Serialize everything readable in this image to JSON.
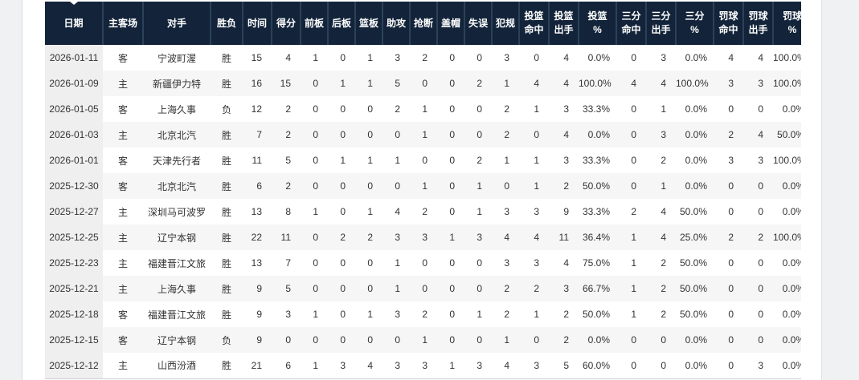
{
  "colors": {
    "header_bg": "#13243a",
    "header_divider": "#2b4158",
    "header_text": "#ffffff",
    "body_text": "#333333",
    "date_col_bg": "#efeff0",
    "stripe_bg": "#f6f6f7",
    "page_edge_bg": "#f0f1f2"
  },
  "table": {
    "columns": [
      {
        "id": "date",
        "label": "日期"
      },
      {
        "id": "venue",
        "label": "主客场"
      },
      {
        "id": "opponent",
        "label": "对手"
      },
      {
        "id": "result",
        "label": "胜负"
      },
      {
        "id": "minutes",
        "label": "时间"
      },
      {
        "id": "points",
        "label": "得分"
      },
      {
        "id": "orb",
        "label": "前板"
      },
      {
        "id": "drb",
        "label": "后板"
      },
      {
        "id": "reb",
        "label": "篮板"
      },
      {
        "id": "ast",
        "label": "助攻"
      },
      {
        "id": "stl",
        "label": "抢断"
      },
      {
        "id": "blk",
        "label": "盖帽"
      },
      {
        "id": "tov",
        "label": "失误"
      },
      {
        "id": "pf",
        "label": "犯规"
      },
      {
        "id": "fgm",
        "label": "投篮命中",
        "label_lines": [
          "投篮",
          "命中"
        ]
      },
      {
        "id": "fga",
        "label": "投篮出手",
        "label_lines": [
          "投篮",
          "出手"
        ]
      },
      {
        "id": "fgp",
        "label": "投篮%",
        "label_lines": [
          "投篮",
          "%"
        ]
      },
      {
        "id": "tpm",
        "label": "三分命中",
        "label_lines": [
          "三分",
          "命中"
        ]
      },
      {
        "id": "tpa",
        "label": "三分出手",
        "label_lines": [
          "三分",
          "出手"
        ]
      },
      {
        "id": "tpp",
        "label": "三分%",
        "label_lines": [
          "三分",
          "%"
        ]
      },
      {
        "id": "ftm",
        "label": "罚球命中",
        "label_lines": [
          "罚球",
          "命中"
        ]
      },
      {
        "id": "fta",
        "label": "罚球出手",
        "label_lines": [
          "罚球",
          "出手"
        ]
      },
      {
        "id": "ftp",
        "label": "罚球%",
        "label_lines": [
          "罚球",
          "%"
        ]
      }
    ],
    "rows": [
      [
        "2026-01-11",
        "客",
        "宁波町渥",
        "胜",
        "15",
        "4",
        "1",
        "0",
        "1",
        "3",
        "2",
        "0",
        "0",
        "3",
        "0",
        "4",
        "0.0%",
        "0",
        "3",
        "0.0%",
        "4",
        "4",
        "100.0%"
      ],
      [
        "2026-01-09",
        "主",
        "新疆伊力特",
        "胜",
        "16",
        "15",
        "0",
        "1",
        "1",
        "5",
        "0",
        "0",
        "2",
        "1",
        "4",
        "4",
        "100.0%",
        "4",
        "4",
        "100.0%",
        "3",
        "3",
        "100.0%"
      ],
      [
        "2026-01-05",
        "客",
        "上海久事",
        "负",
        "12",
        "2",
        "0",
        "0",
        "0",
        "2",
        "1",
        "0",
        "0",
        "2",
        "1",
        "3",
        "33.3%",
        "0",
        "1",
        "0.0%",
        "0",
        "0",
        "0.0%"
      ],
      [
        "2026-01-03",
        "主",
        "北京北汽",
        "胜",
        "7",
        "2",
        "0",
        "0",
        "0",
        "0",
        "1",
        "0",
        "0",
        "2",
        "0",
        "4",
        "0.0%",
        "0",
        "3",
        "0.0%",
        "2",
        "4",
        "50.0%"
      ],
      [
        "2026-01-01",
        "客",
        "天津先行者",
        "胜",
        "11",
        "5",
        "0",
        "1",
        "1",
        "1",
        "0",
        "0",
        "2",
        "1",
        "1",
        "3",
        "33.3%",
        "0",
        "2",
        "0.0%",
        "3",
        "3",
        "100.0%"
      ],
      [
        "2025-12-30",
        "客",
        "北京北汽",
        "胜",
        "6",
        "2",
        "0",
        "0",
        "0",
        "0",
        "1",
        "0",
        "1",
        "0",
        "1",
        "2",
        "50.0%",
        "0",
        "1",
        "0.0%",
        "0",
        "0",
        "0.0%"
      ],
      [
        "2025-12-27",
        "主",
        "深圳马可波罗",
        "胜",
        "13",
        "8",
        "1",
        "0",
        "1",
        "4",
        "2",
        "0",
        "1",
        "3",
        "3",
        "9",
        "33.3%",
        "2",
        "4",
        "50.0%",
        "0",
        "0",
        "0.0%"
      ],
      [
        "2025-12-25",
        "主",
        "辽宁本钢",
        "胜",
        "22",
        "11",
        "0",
        "2",
        "2",
        "3",
        "3",
        "1",
        "3",
        "4",
        "4",
        "11",
        "36.4%",
        "1",
        "4",
        "25.0%",
        "2",
        "2",
        "100.0%"
      ],
      [
        "2025-12-23",
        "主",
        "福建晋江文旅",
        "胜",
        "13",
        "7",
        "0",
        "0",
        "0",
        "1",
        "0",
        "0",
        "0",
        "3",
        "3",
        "4",
        "75.0%",
        "1",
        "2",
        "50.0%",
        "0",
        "0",
        "0.0%"
      ],
      [
        "2025-12-21",
        "主",
        "上海久事",
        "胜",
        "9",
        "5",
        "0",
        "0",
        "0",
        "1",
        "0",
        "0",
        "0",
        "2",
        "2",
        "3",
        "66.7%",
        "1",
        "2",
        "50.0%",
        "0",
        "0",
        "0.0%"
      ],
      [
        "2025-12-18",
        "客",
        "福建晋江文旅",
        "胜",
        "9",
        "3",
        "1",
        "0",
        "1",
        "3",
        "2",
        "0",
        "1",
        "2",
        "1",
        "2",
        "50.0%",
        "1",
        "2",
        "50.0%",
        "0",
        "0",
        "0.0%"
      ],
      [
        "2025-12-15",
        "客",
        "辽宁本钢",
        "负",
        "9",
        "0",
        "0",
        "0",
        "0",
        "0",
        "1",
        "0",
        "0",
        "1",
        "0",
        "2",
        "0.0%",
        "0",
        "0",
        "0.0%",
        "0",
        "0",
        "0.0%"
      ],
      [
        "2025-12-12",
        "主",
        "山西汾酒",
        "胜",
        "21",
        "6",
        "1",
        "3",
        "4",
        "3",
        "3",
        "1",
        "3",
        "4",
        "3",
        "5",
        "60.0%",
        "0",
        "0",
        "0.0%",
        "0",
        "3",
        "0.0%"
      ]
    ]
  }
}
